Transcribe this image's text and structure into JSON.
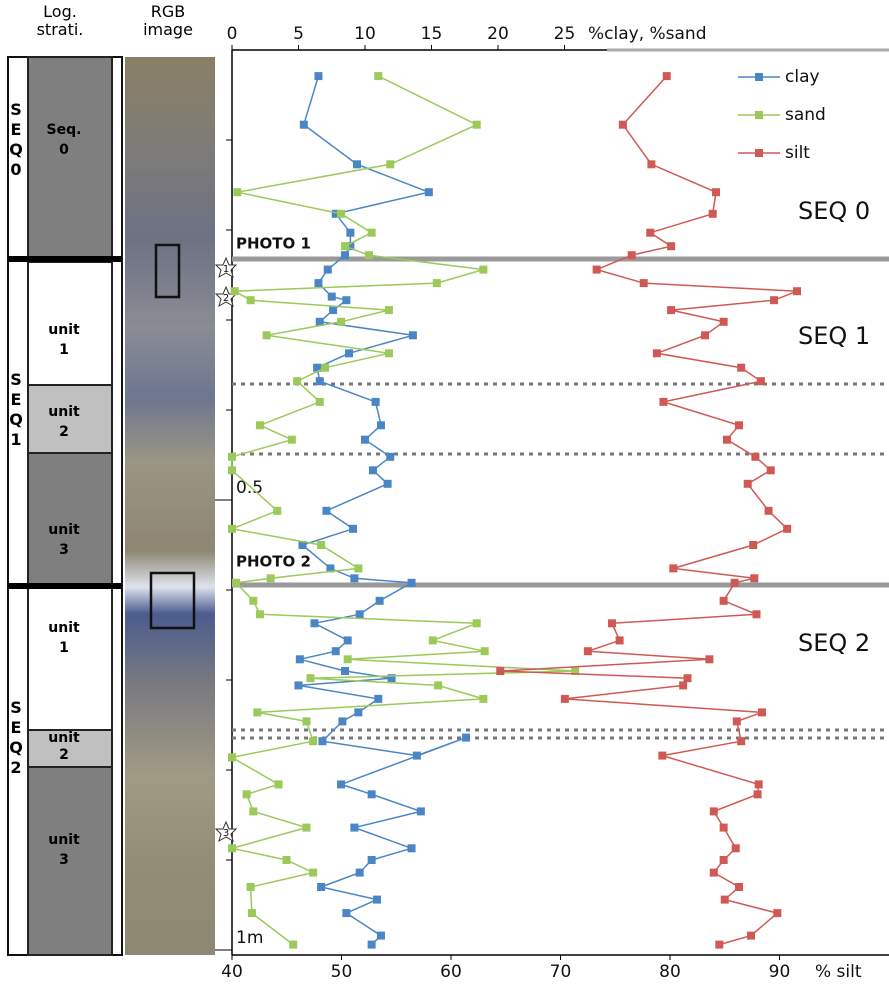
{
  "chart_data": {
    "type": "line",
    "column_headers": [
      "Log. strati.",
      "RGB image"
    ],
    "x_label": "%clay, %sand",
    "x2_label": "% silt",
    "xlim": [
      0,
      49.4
    ],
    "xticks": [
      0,
      5,
      10,
      15,
      20,
      25
    ],
    "x2lim": [
      40,
      100
    ],
    "x2ticks": [
      40,
      50,
      60,
      70,
      80,
      90
    ],
    "ylim": [
      0,
      1
    ],
    "yticks": [
      0.5,
      {
        "value": 1,
        "label": "1m"
      }
    ],
    "legend": "top-right",
    "series": [
      {
        "name": "clay",
        "color": "#4a86c5",
        "axis": "x",
        "depth": [
          0.029,
          0.083,
          0.127,
          0.158,
          0.182,
          0.203,
          0.218,
          0.228,
          0.244,
          0.259,
          0.274,
          0.278,
          0.289,
          0.302,
          0.317,
          0.337,
          0.353,
          0.368,
          0.391,
          0.417,
          0.433,
          0.452,
          0.467,
          0.482,
          0.512,
          0.532,
          0.55,
          0.576,
          0.587,
          0.592,
          0.612,
          0.627,
          0.637,
          0.656,
          0.668,
          0.677,
          0.69,
          0.698,
          0.706,
          0.721,
          0.736,
          0.746,
          0.768,
          0.784,
          0.764,
          0.816,
          0.827,
          0.846,
          0.864,
          0.887,
          0.9,
          0.914,
          0.93,
          0.944,
          0.959,
          0.984,
          0.994
        ],
        "values": [
          6.5,
          5.4,
          9.4,
          14.8,
          7.8,
          8.9,
          8.9,
          8.5,
          7.2,
          6.5,
          7.5,
          8.6,
          7.6,
          6.6,
          13.6,
          8.8,
          6.4,
          6.6,
          10.8,
          11.2,
          10.0,
          11.9,
          10.6,
          11.7,
          7.1,
          9.1,
          5.3,
          7.4,
          9.2,
          13.5,
          11.1,
          9.6,
          6.2,
          8.7,
          7.8,
          5.1,
          8.5,
          12.0,
          5.0,
          11.0,
          9.5,
          8.3,
          6.8,
          13.9,
          17.6,
          8.2,
          10.5,
          14.2,
          9.2,
          13.5,
          10.5,
          9.6,
          6.7,
          10.9,
          8.6,
          11.2,
          10.5
        ]
      },
      {
        "name": "sand",
        "color": "#9bc95a",
        "axis": "x",
        "depth": [
          0.029,
          0.083,
          0.127,
          0.158,
          0.182,
          0.203,
          0.218,
          0.228,
          0.244,
          0.259,
          0.268,
          0.278,
          0.289,
          0.302,
          0.317,
          0.337,
          0.353,
          0.368,
          0.391,
          0.417,
          0.433,
          0.452,
          0.467,
          0.512,
          0.532,
          0.55,
          0.576,
          0.587,
          0.592,
          0.612,
          0.627,
          0.637,
          0.656,
          0.668,
          0.677,
          0.69,
          0.698,
          0.706,
          0.721,
          0.736,
          0.746,
          0.768,
          0.786,
          0.816,
          0.827,
          0.846,
          0.864,
          0.887,
          0.9,
          0.914,
          0.93,
          0.959,
          0.994
        ],
        "values": [
          11.0,
          18.4,
          11.9,
          0.4,
          8.2,
          10.5,
          8.5,
          10.3,
          18.9,
          15.4,
          0.2,
          1.4,
          11.8,
          8.2,
          2.6,
          11.8,
          7.0,
          4.9,
          6.6,
          2.1,
          4.5,
          0.0,
          0.0,
          3.4,
          0.0,
          6.7,
          9.5,
          2.9,
          0.3,
          1.6,
          2.1,
          18.4,
          15.1,
          19.0,
          8.7,
          25.8,
          5.9,
          15.5,
          18.9,
          1.9,
          5.6,
          6.1,
          0.0,
          3.5,
          1.1,
          1.6,
          5.6,
          0.0,
          4.1,
          6.1,
          1.4,
          1.5,
          4.6
        ]
      },
      {
        "name": "silt",
        "color": "#cf5a55",
        "axis": "x2",
        "depth": [
          0.029,
          0.083,
          0.127,
          0.158,
          0.182,
          0.203,
          0.218,
          0.228,
          0.244,
          0.259,
          0.268,
          0.278,
          0.289,
          0.302,
          0.317,
          0.337,
          0.353,
          0.368,
          0.391,
          0.417,
          0.433,
          0.452,
          0.467,
          0.482,
          0.512,
          0.532,
          0.55,
          0.576,
          0.587,
          0.592,
          0.612,
          0.627,
          0.637,
          0.656,
          0.668,
          0.677,
          0.69,
          0.698,
          0.706,
          0.721,
          0.736,
          0.746,
          0.768,
          0.784,
          0.816,
          0.827,
          0.846,
          0.864,
          0.887,
          0.9,
          0.914,
          0.93,
          0.944,
          0.959,
          0.984,
          0.994
        ],
        "values": [
          79.7,
          75.7,
          78.3,
          84.2,
          83.9,
          78.2,
          80.1,
          76.5,
          73.3,
          77.6,
          91.6,
          89.5,
          80.1,
          84.9,
          83.2,
          78.8,
          86.5,
          88.3,
          79.4,
          86.3,
          85.2,
          87.8,
          89.2,
          87.1,
          89.0,
          90.7,
          87.6,
          80.3,
          87.7,
          85.9,
          84.9,
          87.9,
          74.7,
          75.4,
          72.5,
          83.6,
          64.5,
          81.6,
          81.2,
          70.4,
          88.4,
          86.1,
          86.5,
          79.3,
          88.1,
          88.0,
          84.0,
          84.9,
          86.0,
          84.9,
          84.0,
          86.3,
          85.0,
          89.8,
          87.4,
          84.5
        ]
      }
    ],
    "sequence_labels": [
      "SEQ 0",
      "SEQ 1",
      "SEQ 2"
    ],
    "photo_labels": [
      "PHOTO 1",
      "PHOTO 2"
    ],
    "sample_markers": [
      "1",
      "2",
      "3"
    ],
    "strat_side": [
      "SEQ0",
      "SEQ1",
      "SEQ2"
    ],
    "strat_units": [
      "Seq. 0",
      "unit 1",
      "unit 2",
      "unit 3",
      "unit 1",
      "unit 2",
      "unit 3"
    ]
  }
}
